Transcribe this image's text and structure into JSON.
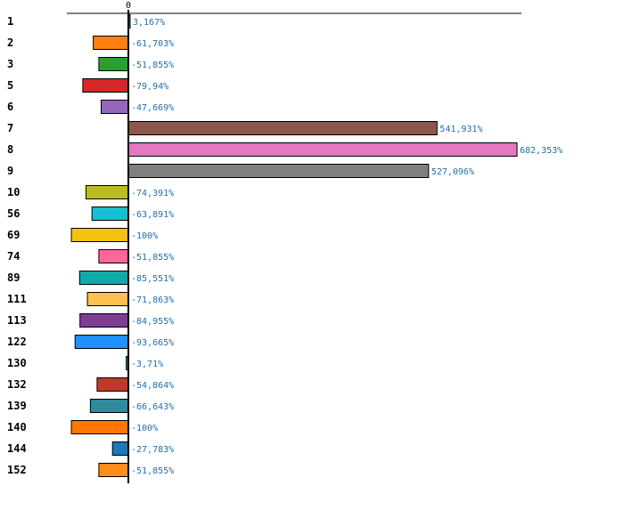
{
  "chart_data": {
    "type": "bar",
    "orientation": "horizontal",
    "title": "",
    "xlabel": "",
    "ylabel": "",
    "xlim": [
      -100,
      682.353
    ],
    "zero_tick_label": "0",
    "grid": false,
    "legend": "none",
    "categories": [
      "1",
      "2",
      "3",
      "5",
      "6",
      "7",
      "8",
      "9",
      "10",
      "56",
      "69",
      "74",
      "89",
      "111",
      "113",
      "122",
      "130",
      "132",
      "139",
      "140",
      "144",
      "152"
    ],
    "values": [
      3.167,
      -61.703,
      -51.855,
      -79.94,
      -47.669,
      541.931,
      682.353,
      527.096,
      -74.391,
      -63.891,
      -100,
      -51.855,
      -85.551,
      -71.863,
      -84.955,
      -93.665,
      -3.71,
      -54.864,
      -66.643,
      -100,
      -27.783,
      -51.855
    ],
    "value_labels": [
      "3,167%",
      "-61,703%",
      "-51,855%",
      "-79,94%",
      "-47,669%",
      "541,931%",
      "682,353%",
      "527,096%",
      "-74,391%",
      "-63,891%",
      "-100%",
      "-51,855%",
      "-85,551%",
      "-71,863%",
      "-84,955%",
      "-93,665%",
      "-3,71%",
      "-54,864%",
      "-66,643%",
      "-100%",
      "-27,783%",
      "-51,855%"
    ],
    "colors": [
      "#1f77b4",
      "#ff7f0e",
      "#2ca02c",
      "#d62728",
      "#9467bd",
      "#8c564b",
      "#e377c2",
      "#7f7f7f",
      "#bcbd22",
      "#17becf",
      "#f5c211",
      "#ff6699",
      "#11aaaa",
      "#ffc04d",
      "#7d3c98",
      "#1e90ff",
      "#2e8b57",
      "#c0392b",
      "#2e8b9a",
      "#ff7700",
      "#1f77b4",
      "#ff8c1a"
    ]
  }
}
